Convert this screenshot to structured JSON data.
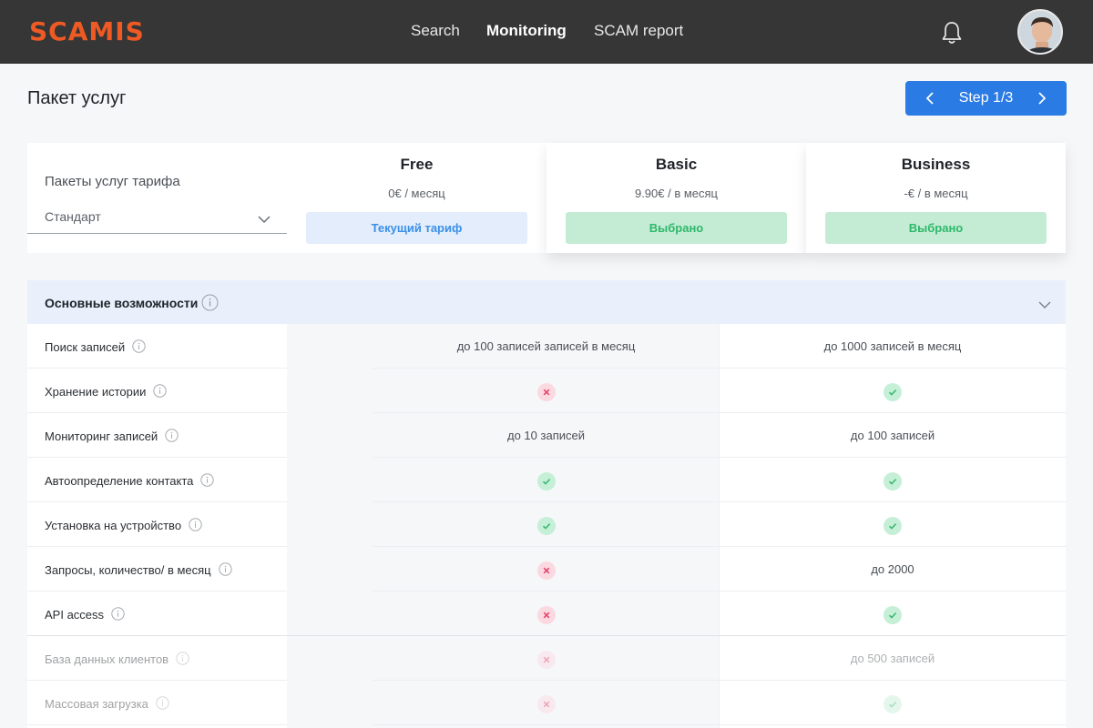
{
  "header": {
    "logo": "SCAMIS",
    "nav": [
      "Search",
      "Monitoring",
      "SCAM report"
    ],
    "active_nav": "Monitoring"
  },
  "page": {
    "title": "Пакет услуг",
    "step_label": "Step 1/3"
  },
  "plans": {
    "label": "Пакеты услуг тарифа",
    "select_value": "Стандарт",
    "items": [
      {
        "name": "Free",
        "price": "0€ / месяц",
        "button": "Текущий тариф"
      },
      {
        "name": "Basic",
        "price": "9.90€ / в месяц",
        "button": "Выбрано"
      },
      {
        "name": "Business",
        "price": "-€ / в месяц",
        "button": "Выбрано"
      }
    ]
  },
  "features": {
    "section_title": "Основные возможности",
    "rows": [
      {
        "label": "Поиск записей",
        "basic": "до 100 записей записей в месяц",
        "business": "до 1000 записей в месяц"
      },
      {
        "label": "Хранение истории",
        "basic": "no",
        "business": "yes"
      },
      {
        "label": "Мониторинг записей",
        "basic": "до 10 записей",
        "business": "до 100 записей"
      },
      {
        "label": "Автоопределение контакта",
        "basic": "yes",
        "business": "yes"
      },
      {
        "label": "Установка на устройство",
        "basic": "yes",
        "business": "yes"
      },
      {
        "label": "Запросы, количество/ в месяц",
        "basic": "no",
        "business": "до 2000"
      },
      {
        "label": "API access",
        "basic": "no",
        "business": "yes"
      },
      {
        "label": "База данных клиентов",
        "basic": "no",
        "business": "до 500 записей"
      },
      {
        "label": "Массовая загрузка",
        "basic": "no",
        "business": "yes"
      }
    ]
  },
  "colors": {
    "accent": "#ef5a24",
    "primary": "#2a7be4",
    "success": "#2eb86a",
    "danger": "#e0436b",
    "topbar": "#363636"
  },
  "icons": {
    "notification": "bell-icon",
    "info": "info-icon",
    "yes": "check-icon",
    "no": "cross-icon"
  }
}
